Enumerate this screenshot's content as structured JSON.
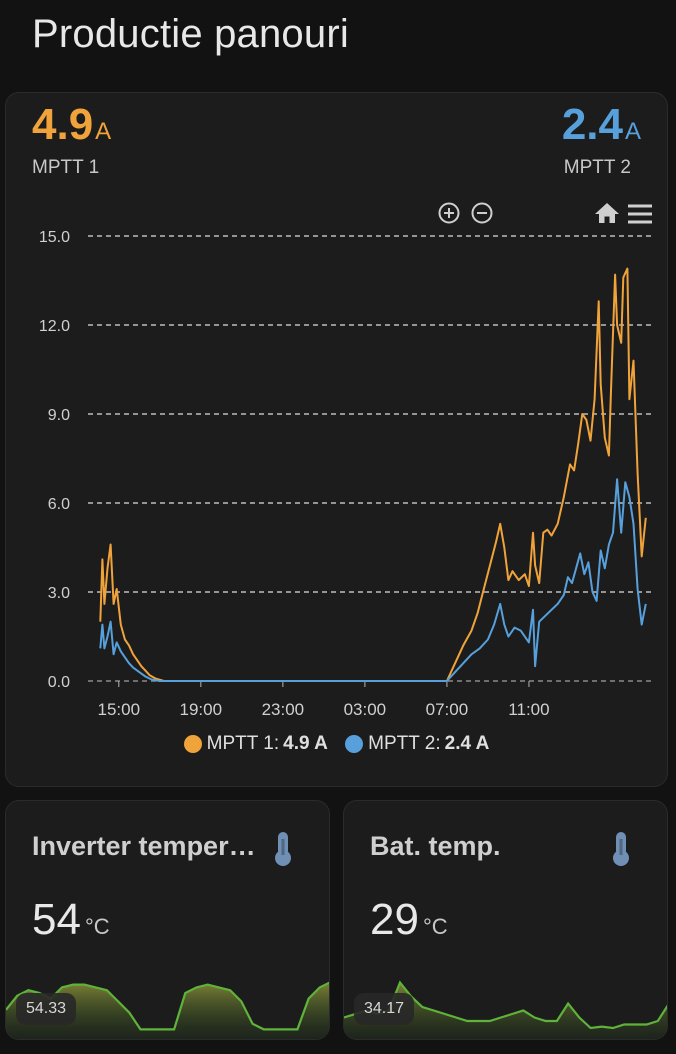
{
  "page": {
    "title": "Productie panouri"
  },
  "main": {
    "mptt1": {
      "value": "4.9",
      "unit": "A",
      "name": "MPTT 1",
      "color": "#f0a33a"
    },
    "mptt2": {
      "value": "2.4",
      "unit": "A",
      "name": "MPTT 2",
      "color": "#57a0dc"
    },
    "toolbar": {
      "zoom_in_icon": "zoom-in-icon",
      "zoom_out_icon": "zoom-out-icon",
      "home_icon": "home-icon",
      "menu_icon": "menu-icon"
    },
    "legend": [
      {
        "label": "MPTT 1:",
        "value": "4.9 A"
      },
      {
        "label": "MPTT 2:",
        "value": "2.4 A"
      }
    ]
  },
  "chart_data": {
    "type": "line",
    "ylim": [
      0,
      15
    ],
    "y_ticks": [
      "0.0",
      "3.0",
      "6.0",
      "9.0",
      "12.0",
      "15.0"
    ],
    "x_ticks": [
      "15:00",
      "19:00",
      "23:00",
      "03:00",
      "07:00",
      "11:00"
    ],
    "grid": true,
    "legend_position": "bottom",
    "series": [
      {
        "name": "MPTT 1",
        "color": "#f0a33a",
        "points": [
          [
            14.1,
            2.0
          ],
          [
            14.2,
            4.1
          ],
          [
            14.3,
            2.6
          ],
          [
            14.45,
            3.8
          ],
          [
            14.6,
            4.6
          ],
          [
            14.75,
            2.6
          ],
          [
            14.9,
            3.1
          ],
          [
            15.1,
            1.9
          ],
          [
            15.3,
            1.4
          ],
          [
            15.5,
            1.2
          ],
          [
            15.7,
            0.9
          ],
          [
            15.9,
            0.7
          ],
          [
            16.1,
            0.5
          ],
          [
            16.3,
            0.35
          ],
          [
            16.5,
            0.2
          ],
          [
            16.8,
            0.08
          ],
          [
            17.2,
            0
          ],
          [
            31.0,
            0
          ],
          [
            31.4,
            0.6
          ],
          [
            31.8,
            1.2
          ],
          [
            32.2,
            1.7
          ],
          [
            32.5,
            2.3
          ],
          [
            32.8,
            3.1
          ],
          [
            33.1,
            3.9
          ],
          [
            33.4,
            4.7
          ],
          [
            33.6,
            5.3
          ],
          [
            33.8,
            4.5
          ],
          [
            34.0,
            3.4
          ],
          [
            34.2,
            3.7
          ],
          [
            34.5,
            3.4
          ],
          [
            34.8,
            3.6
          ],
          [
            35.0,
            3.2
          ],
          [
            35.2,
            5.0
          ],
          [
            35.3,
            3.9
          ],
          [
            35.5,
            3.3
          ],
          [
            35.7,
            5.0
          ],
          [
            35.9,
            5.1
          ],
          [
            36.1,
            4.9
          ],
          [
            36.4,
            5.3
          ],
          [
            36.7,
            6.2
          ],
          [
            37.0,
            7.3
          ],
          [
            37.2,
            7.1
          ],
          [
            37.4,
            8.0
          ],
          [
            37.6,
            9.0
          ],
          [
            37.8,
            8.8
          ],
          [
            38.0,
            8.1
          ],
          [
            38.2,
            9.5
          ],
          [
            38.4,
            12.8
          ],
          [
            38.5,
            10.0
          ],
          [
            38.7,
            8.2
          ],
          [
            38.9,
            7.6
          ],
          [
            39.0,
            9.8
          ],
          [
            39.2,
            13.7
          ],
          [
            39.3,
            12.0
          ],
          [
            39.5,
            11.4
          ],
          [
            39.6,
            13.6
          ],
          [
            39.8,
            13.9
          ],
          [
            39.9,
            9.5
          ],
          [
            40.1,
            10.8
          ],
          [
            40.3,
            7.0
          ],
          [
            40.5,
            4.2
          ],
          [
            40.7,
            5.5
          ]
        ]
      },
      {
        "name": "MPTT 2",
        "color": "#57a0dc",
        "points": [
          [
            14.1,
            1.1
          ],
          [
            14.2,
            1.9
          ],
          [
            14.3,
            1.1
          ],
          [
            14.45,
            1.5
          ],
          [
            14.6,
            2.0
          ],
          [
            14.75,
            0.9
          ],
          [
            14.9,
            1.3
          ],
          [
            15.1,
            1.0
          ],
          [
            15.3,
            0.8
          ],
          [
            15.5,
            0.6
          ],
          [
            15.7,
            0.45
          ],
          [
            15.9,
            0.35
          ],
          [
            16.1,
            0.25
          ],
          [
            16.3,
            0.15
          ],
          [
            16.6,
            0.05
          ],
          [
            17.0,
            0
          ],
          [
            31.0,
            0
          ],
          [
            31.4,
            0.3
          ],
          [
            31.8,
            0.6
          ],
          [
            32.2,
            0.9
          ],
          [
            32.6,
            1.1
          ],
          [
            33.0,
            1.4
          ],
          [
            33.3,
            1.9
          ],
          [
            33.6,
            2.6
          ],
          [
            33.8,
            1.9
          ],
          [
            34.0,
            1.5
          ],
          [
            34.3,
            1.8
          ],
          [
            34.6,
            1.7
          ],
          [
            35.0,
            1.3
          ],
          [
            35.2,
            2.4
          ],
          [
            35.3,
            0.5
          ],
          [
            35.5,
            2.0
          ],
          [
            35.8,
            2.2
          ],
          [
            36.1,
            2.4
          ],
          [
            36.4,
            2.6
          ],
          [
            36.7,
            2.9
          ],
          [
            36.9,
            3.5
          ],
          [
            37.1,
            3.3
          ],
          [
            37.3,
            3.8
          ],
          [
            37.5,
            4.3
          ],
          [
            37.7,
            3.6
          ],
          [
            37.9,
            4.0
          ],
          [
            38.1,
            3.0
          ],
          [
            38.3,
            2.7
          ],
          [
            38.5,
            4.4
          ],
          [
            38.7,
            3.8
          ],
          [
            38.9,
            4.6
          ],
          [
            39.1,
            5.0
          ],
          [
            39.3,
            6.8
          ],
          [
            39.5,
            5.0
          ],
          [
            39.7,
            6.7
          ],
          [
            39.9,
            6.2
          ],
          [
            40.1,
            5.3
          ],
          [
            40.3,
            3.1
          ],
          [
            40.5,
            1.9
          ],
          [
            40.7,
            2.6
          ]
        ]
      }
    ]
  },
  "sensors": {
    "inverter": {
      "name": "Inverter temper…",
      "value": "54",
      "unit": "°C",
      "spark_label": "54.33",
      "spark_values": [
        47,
        52,
        54,
        53,
        51,
        55,
        56,
        56,
        55,
        54,
        50,
        46,
        40,
        40,
        40,
        40,
        53,
        55,
        56,
        55,
        54,
        50,
        42,
        40,
        40,
        40,
        40,
        51,
        55,
        57
      ]
    },
    "battery": {
      "name": "Bat. temp.",
      "value": "29",
      "unit": "°C",
      "spark_label": "34.17",
      "spark_values": [
        30,
        30.5,
        31,
        30.5,
        31,
        35,
        33,
        31.5,
        31,
        30.5,
        30,
        29.5,
        29.5,
        29.5,
        30,
        30.5,
        31,
        30,
        29.5,
        29.5,
        32,
        30,
        28.5,
        28.7,
        28.5,
        29,
        29,
        29,
        29.5,
        32
      ]
    }
  }
}
